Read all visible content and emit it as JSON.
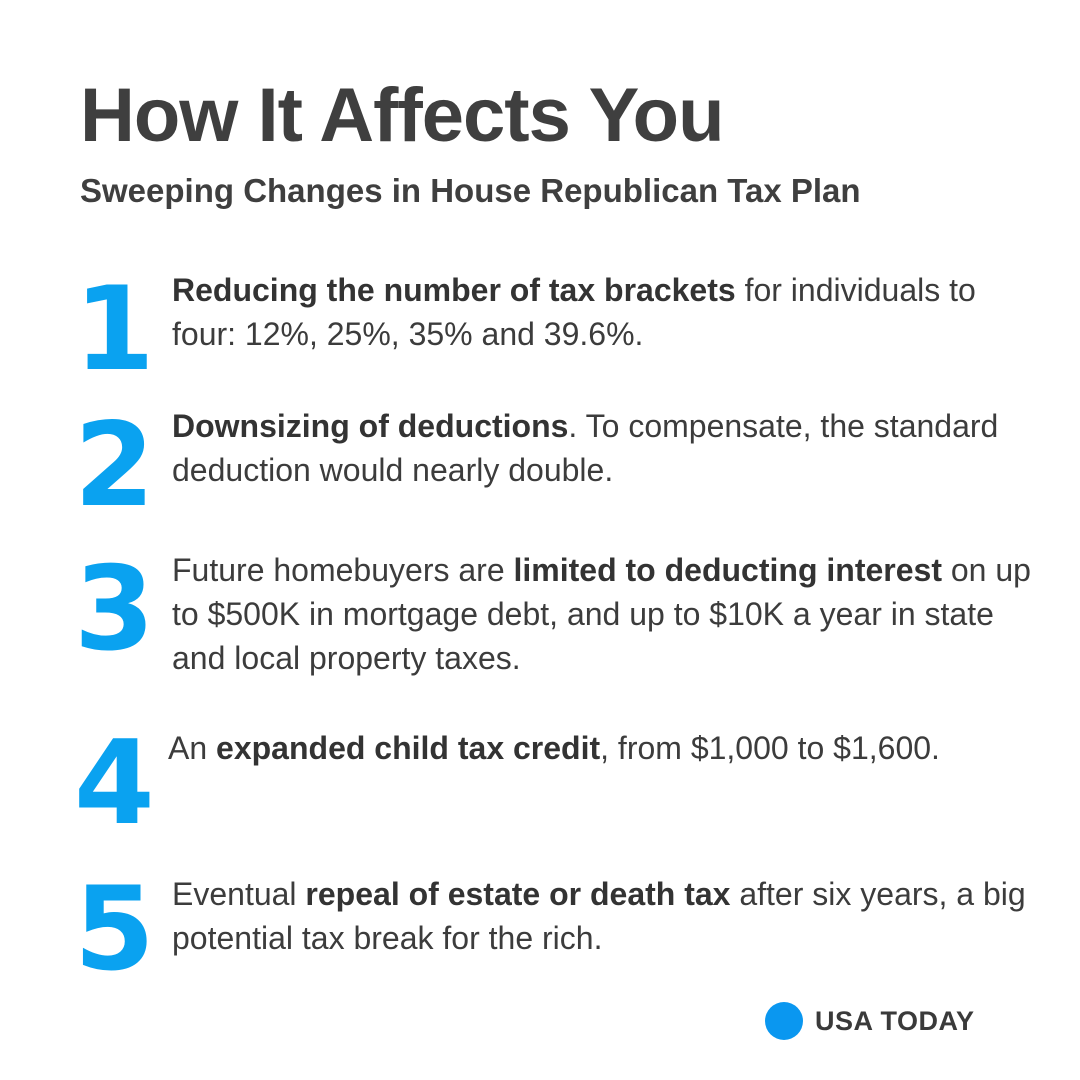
{
  "title": "How It Affects You",
  "subtitle": "Sweeping Changes in House Republican Tax Plan",
  "items": [
    {
      "number": "1",
      "segments": [
        {
          "text": "Reducing the number of tax brackets",
          "bold": true
        },
        {
          "text": " for individuals to four: 12%, 25%, 35% and 39.6%.",
          "bold": false
        }
      ]
    },
    {
      "number": "2",
      "segments": [
        {
          "text": "Downsizing of deductions",
          "bold": true
        },
        {
          "text": ". To compensate, the standard deduction would nearly double.",
          "bold": false
        }
      ]
    },
    {
      "number": "3",
      "segments": [
        {
          "text": "Future homebuyers are ",
          "bold": false
        },
        {
          "text": "limited to deducting interest",
          "bold": true
        },
        {
          "text": " on up to $500K in mortgage debt, and up to $10K a year in state and local property taxes.",
          "bold": false
        }
      ]
    },
    {
      "number": "4",
      "segments": [
        {
          "text": "An ",
          "bold": false
        },
        {
          "text": "expanded child tax credit",
          "bold": true
        },
        {
          "text": ", from  $1,000 to $1,600.",
          "bold": false
        }
      ]
    },
    {
      "number": "5",
      "segments": [
        {
          "text": "Eventual ",
          "bold": false
        },
        {
          "text": "repeal of estate or death tax",
          "bold": true
        },
        {
          "text": " after six years, a big potential tax break for the rich.",
          "bold": false
        }
      ]
    }
  ],
  "brand": {
    "name": "USA TODAY",
    "logo_icon": "blue-circle-logo",
    "logo_color": "#0a97f0"
  },
  "colors": {
    "number_accent": "#0aa2f0",
    "text": "#3c3c3c"
  }
}
